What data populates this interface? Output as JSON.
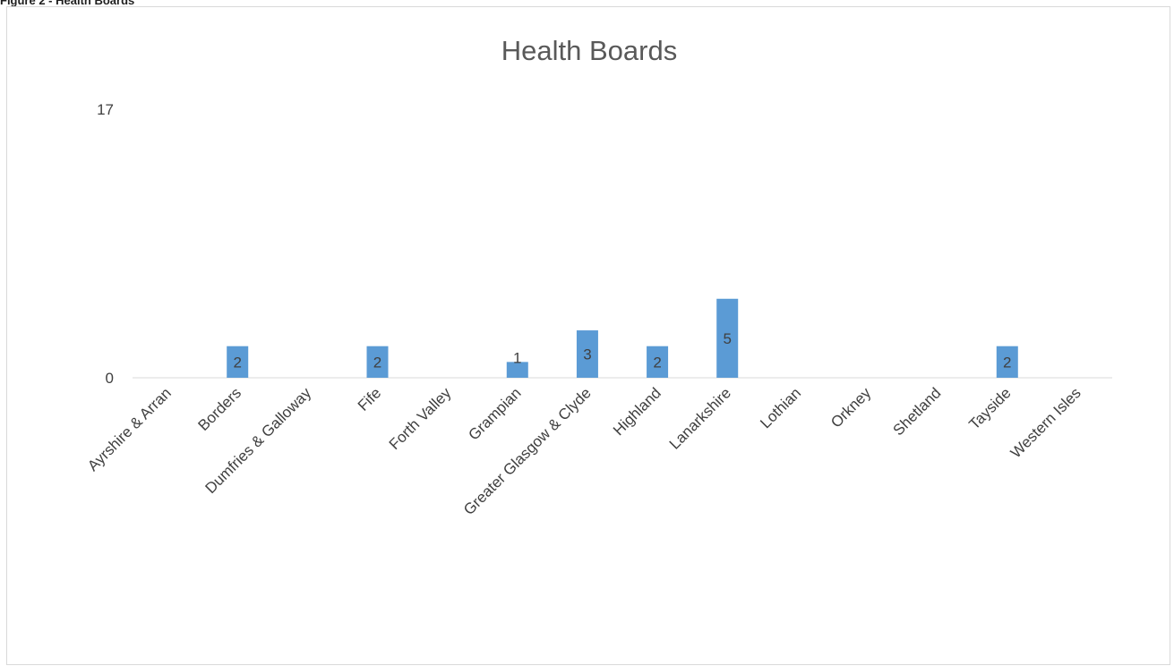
{
  "caption": "Figure 2 - Health Boards",
  "chart_data": {
    "type": "bar",
    "title": "Health Boards",
    "categories": [
      "Ayrshire & Arran",
      "Borders",
      "Dumfries & Galloway",
      "Fife",
      "Forth Valley",
      "Grampian",
      "Greater Glasgow & Clyde",
      "Highland",
      "Lanarkshire",
      "Lothian",
      "Orkney",
      "Shetland",
      "Tayside",
      "Western Isles"
    ],
    "values": [
      0,
      2,
      0,
      2,
      0,
      1,
      3,
      2,
      5,
      0,
      0,
      0,
      2,
      0
    ],
    "data_labels": [
      "",
      "2",
      "",
      "2",
      "",
      "1",
      "3",
      "2",
      "5",
      "",
      "",
      "",
      "2",
      ""
    ],
    "yticks": [
      0,
      17
    ],
    "ylim": [
      0,
      17
    ],
    "bar_color": "#5b9bd5",
    "grid": false,
    "legend": "none"
  }
}
